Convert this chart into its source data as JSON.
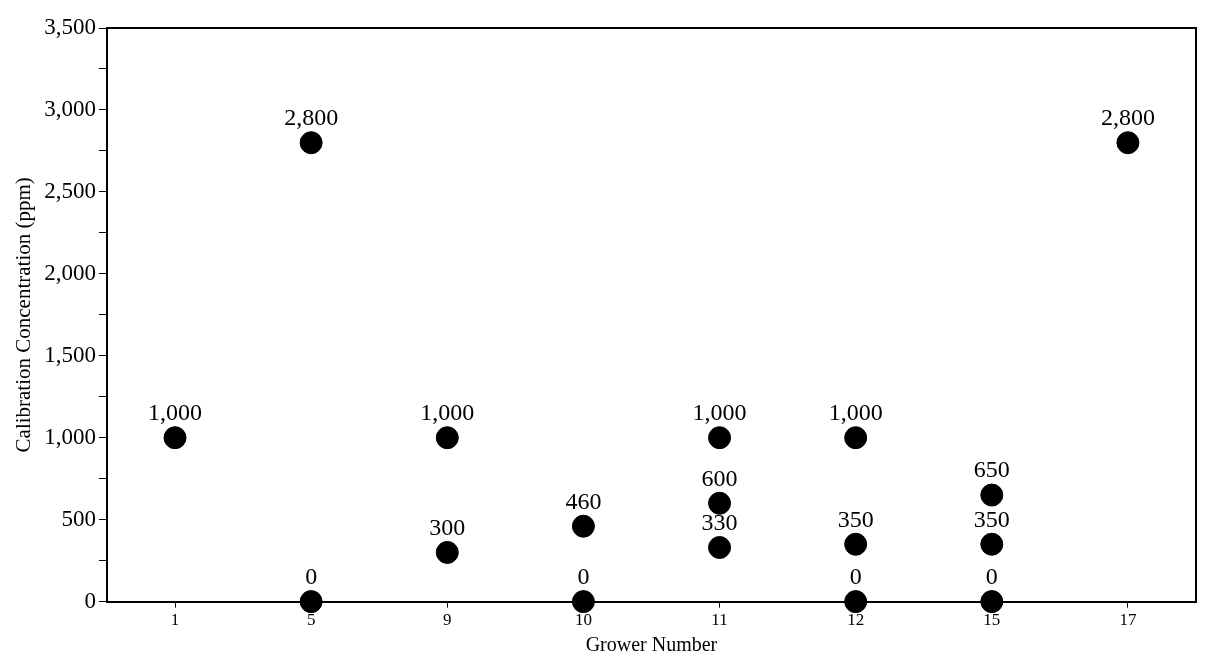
{
  "chart_data": {
    "type": "scatter",
    "xlabel": "Grower Number",
    "ylabel": "Calibration Concentration (ppm)",
    "categories": [
      "1",
      "5",
      "9",
      "10",
      "11",
      "12",
      "15",
      "17"
    ],
    "series": [
      {
        "color": "#000000",
        "x": [
          "1",
          "5",
          "5",
          "9",
          "9",
          "10",
          "10",
          "11",
          "11",
          "11",
          "12",
          "12",
          "12",
          "15",
          "15",
          "15",
          "17"
        ],
        "values": [
          1000,
          2800,
          0,
          1000,
          300,
          460,
          0,
          1000,
          600,
          330,
          1000,
          350,
          0,
          650,
          350,
          0,
          2800
        ],
        "value_labels": [
          "1,000",
          "2,800",
          "0",
          "1,000",
          "300",
          "460",
          "0",
          "1,000",
          "600",
          "330",
          "1,000",
          "350",
          "0",
          "650",
          "350",
          "0",
          "2,800"
        ]
      }
    ],
    "ylim": [
      0,
      3500
    ],
    "yticks": [
      {
        "value": 0,
        "label": "0"
      },
      {
        "value": 250,
        "label": null
      },
      {
        "value": 500,
        "label": "500"
      },
      {
        "value": 750,
        "label": null
      },
      {
        "value": 1000,
        "label": "1,000"
      },
      {
        "value": 1250,
        "label": null
      },
      {
        "value": 1500,
        "label": "1,500"
      },
      {
        "value": 1750,
        "label": null
      },
      {
        "value": 2000,
        "label": "2,000"
      },
      {
        "value": 2250,
        "label": null
      },
      {
        "value": 2500,
        "label": "2,500"
      },
      {
        "value": 2750,
        "label": null
      },
      {
        "value": 3000,
        "label": "3,000"
      },
      {
        "value": 3250,
        "label": null
      },
      {
        "value": 3500,
        "label": "3,500"
      }
    ],
    "grid": false,
    "legend": false,
    "marker": "circle"
  }
}
